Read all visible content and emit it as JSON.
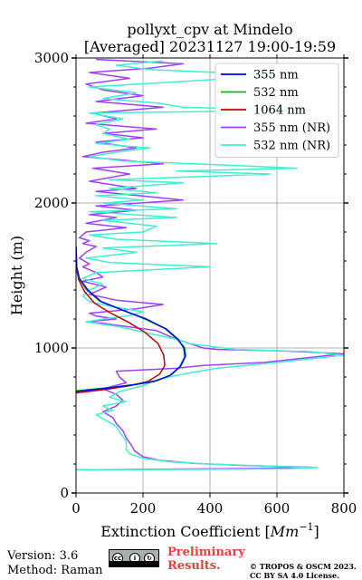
{
  "chart_data": {
    "type": "line",
    "title": "pollyxt_cpv at Mindelo",
    "subtitle": "[Averaged] 20231127 19:00-19:59",
    "xlabel_text": "Extinction Coefficient [",
    "xlabel_unit": "Mm",
    "xlabel_exp": "−1",
    "xlabel_close": "]",
    "ylabel": "Height (m)",
    "xlim": [
      0,
      800
    ],
    "ylim": [
      0,
      3000
    ],
    "x_ticks": [
      0,
      200,
      400,
      600,
      800
    ],
    "y_ticks": [
      0,
      1000,
      2000,
      3000
    ],
    "grid": true,
    "legend_position": "top-right",
    "series": [
      {
        "name": "355 nm",
        "color": "#0000ff",
        "points": [
          [
            0,
            700
          ],
          [
            100,
            725
          ],
          [
            170,
            745
          ],
          [
            235,
            770
          ],
          [
            280,
            810
          ],
          [
            310,
            870
          ],
          [
            325,
            940
          ],
          [
            322,
            1000
          ],
          [
            305,
            1060
          ],
          [
            270,
            1130
          ],
          [
            210,
            1200
          ],
          [
            140,
            1260
          ],
          [
            75,
            1320
          ],
          [
            35,
            1400
          ],
          [
            10,
            1480
          ],
          [
            2,
            1560
          ],
          [
            0,
            1700
          ]
        ]
      },
      {
        "name": "532 nm",
        "color": "#00bb00",
        "points": [
          [
            0,
            705
          ],
          [
            110,
            730
          ],
          [
            180,
            750
          ],
          [
            240,
            775
          ],
          [
            285,
            815
          ],
          [
            313,
            875
          ],
          [
            328,
            945
          ],
          [
            324,
            1005
          ],
          [
            300,
            1065
          ],
          [
            265,
            1135
          ],
          [
            200,
            1205
          ],
          [
            135,
            1265
          ],
          [
            70,
            1325
          ],
          [
            30,
            1405
          ],
          [
            8,
            1485
          ],
          [
            2,
            1560
          ],
          [
            0,
            1700
          ]
        ]
      },
      {
        "name": "1064 nm",
        "color": "#cc0000",
        "points": [
          [
            0,
            690
          ],
          [
            90,
            715
          ],
          [
            160,
            740
          ],
          [
            215,
            770
          ],
          [
            250,
            820
          ],
          [
            265,
            880
          ],
          [
            262,
            950
          ],
          [
            245,
            1030
          ],
          [
            205,
            1110
          ],
          [
            155,
            1180
          ],
          [
            100,
            1245
          ],
          [
            55,
            1310
          ],
          [
            25,
            1390
          ],
          [
            8,
            1470
          ],
          [
            2,
            1540
          ],
          [
            0,
            1700
          ]
        ]
      },
      {
        "name": "355 nm (NR)",
        "color": "#a040ff",
        "points": [
          [
            0,
            160
          ],
          [
            300,
            165
          ],
          [
            560,
            170
          ],
          [
            700,
            178
          ],
          [
            500,
            190
          ],
          [
            350,
            205
          ],
          [
            250,
            225
          ],
          [
            200,
            250
          ],
          [
            175,
            290
          ],
          [
            165,
            330
          ],
          [
            150,
            380
          ],
          [
            140,
            430
          ],
          [
            120,
            480
          ],
          [
            110,
            520
          ],
          [
            80,
            560
          ],
          [
            120,
            600
          ],
          [
            140,
            640
          ],
          [
            120,
            680
          ],
          [
            80,
            720
          ],
          [
            150,
            760
          ],
          [
            130,
            800
          ],
          [
            120,
            840
          ],
          [
            300,
            860
          ],
          [
            380,
            880
          ],
          [
            560,
            900
          ],
          [
            800,
            960
          ],
          [
            620,
            980
          ],
          [
            420,
            990
          ],
          [
            380,
            1000
          ],
          [
            300,
            1060
          ],
          [
            240,
            1120
          ],
          [
            80,
            1170
          ],
          [
            30,
            1180
          ],
          [
            120,
            1200
          ],
          [
            60,
            1220
          ],
          [
            40,
            1240
          ],
          [
            180,
            1270
          ],
          [
            260,
            1300
          ],
          [
            120,
            1330
          ],
          [
            40,
            1370
          ],
          [
            90,
            1420
          ],
          [
            20,
            1460
          ],
          [
            80,
            1490
          ],
          [
            60,
            1520
          ],
          [
            20,
            1560
          ],
          [
            40,
            1580
          ],
          [
            10,
            1620
          ],
          [
            30,
            1660
          ],
          [
            60,
            1700
          ],
          [
            20,
            1720
          ],
          [
            40,
            1740
          ],
          [
            10,
            1760
          ],
          [
            30,
            1800
          ],
          [
            150,
            1830
          ],
          [
            30,
            1860
          ],
          [
            120,
            1900
          ],
          [
            40,
            1920
          ],
          [
            180,
            1950
          ],
          [
            60,
            1980
          ],
          [
            320,
            2020
          ],
          [
            60,
            2080
          ],
          [
            180,
            2100
          ],
          [
            40,
            2150
          ],
          [
            160,
            2200
          ],
          [
            50,
            2240
          ],
          [
            260,
            2270
          ],
          [
            120,
            2300
          ],
          [
            20,
            2320
          ],
          [
            80,
            2350
          ],
          [
            180,
            2380
          ],
          [
            60,
            2420
          ],
          [
            200,
            2450
          ],
          [
            80,
            2480
          ],
          [
            240,
            2510
          ],
          [
            30,
            2550
          ],
          [
            120,
            2580
          ],
          [
            50,
            2620
          ],
          [
            260,
            2660
          ],
          [
            60,
            2700
          ],
          [
            200,
            2740
          ],
          [
            80,
            2780
          ],
          [
            30,
            2820
          ],
          [
            160,
            2860
          ],
          [
            40,
            2900
          ],
          [
            220,
            2930
          ],
          [
            320,
            2960
          ],
          [
            60,
            2990
          ]
        ]
      },
      {
        "name": "532 nm (NR)",
        "color": "#40f0d0",
        "points": [
          [
            0,
            160
          ],
          [
            400,
            163
          ],
          [
            640,
            168
          ],
          [
            720,
            175
          ],
          [
            540,
            188
          ],
          [
            400,
            200
          ],
          [
            280,
            215
          ],
          [
            200,
            240
          ],
          [
            160,
            270
          ],
          [
            150,
            300
          ],
          [
            150,
            360
          ],
          [
            130,
            420
          ],
          [
            120,
            460
          ],
          [
            90,
            500
          ],
          [
            60,
            540
          ],
          [
            110,
            570
          ],
          [
            80,
            600
          ],
          [
            150,
            630
          ],
          [
            100,
            660
          ],
          [
            130,
            700
          ],
          [
            200,
            740
          ],
          [
            240,
            780
          ],
          [
            320,
            820
          ],
          [
            420,
            860
          ],
          [
            600,
            900
          ],
          [
            800,
            950
          ],
          [
            700,
            975
          ],
          [
            480,
            990
          ],
          [
            440,
            1000
          ],
          [
            340,
            1030
          ],
          [
            300,
            1060
          ],
          [
            200,
            1110
          ],
          [
            120,
            1150
          ],
          [
            30,
            1180
          ],
          [
            80,
            1200
          ],
          [
            150,
            1220
          ],
          [
            200,
            1250
          ],
          [
            100,
            1290
          ],
          [
            40,
            1320
          ],
          [
            20,
            1360
          ],
          [
            40,
            1400
          ],
          [
            80,
            1440
          ],
          [
            20,
            1480
          ],
          [
            60,
            1520
          ],
          [
            400,
            1560
          ],
          [
            100,
            1590
          ],
          [
            30,
            1620
          ],
          [
            180,
            1660
          ],
          [
            80,
            1690
          ],
          [
            420,
            1720
          ],
          [
            120,
            1750
          ],
          [
            40,
            1780
          ],
          [
            200,
            1800
          ],
          [
            240,
            1840
          ],
          [
            80,
            1880
          ],
          [
            300,
            1900
          ],
          [
            40,
            1940
          ],
          [
            300,
            1960
          ],
          [
            80,
            2000
          ],
          [
            200,
            2020
          ],
          [
            60,
            2050
          ],
          [
            240,
            2070
          ],
          [
            100,
            2100
          ],
          [
            320,
            2140
          ],
          [
            100,
            2160
          ],
          [
            580,
            2200
          ],
          [
            300,
            2220
          ],
          [
            660,
            2240
          ],
          [
            460,
            2260
          ],
          [
            140,
            2290
          ],
          [
            40,
            2320
          ],
          [
            120,
            2350
          ],
          [
            220,
            2380
          ],
          [
            60,
            2410
          ],
          [
            160,
            2440
          ],
          [
            80,
            2480
          ],
          [
            100,
            2510
          ],
          [
            60,
            2540
          ],
          [
            140,
            2580
          ],
          [
            40,
            2620
          ],
          [
            700,
            2640
          ],
          [
            320,
            2660
          ],
          [
            240,
            2690
          ],
          [
            80,
            2720
          ],
          [
            180,
            2760
          ],
          [
            40,
            2800
          ],
          [
            620,
            2880
          ],
          [
            220,
            2920
          ],
          [
            120,
            2950
          ],
          [
            260,
            2980
          ]
        ]
      }
    ]
  },
  "footer": {
    "version": "Version: 3.6",
    "method": "Method: Raman",
    "preliminary_line1": "Preliminary",
    "preliminary_line2": "Results.",
    "copyright_line1": "© TROPOS & OSCM 2023.",
    "copyright_line2": "CC BY SA 4.0 License."
  }
}
